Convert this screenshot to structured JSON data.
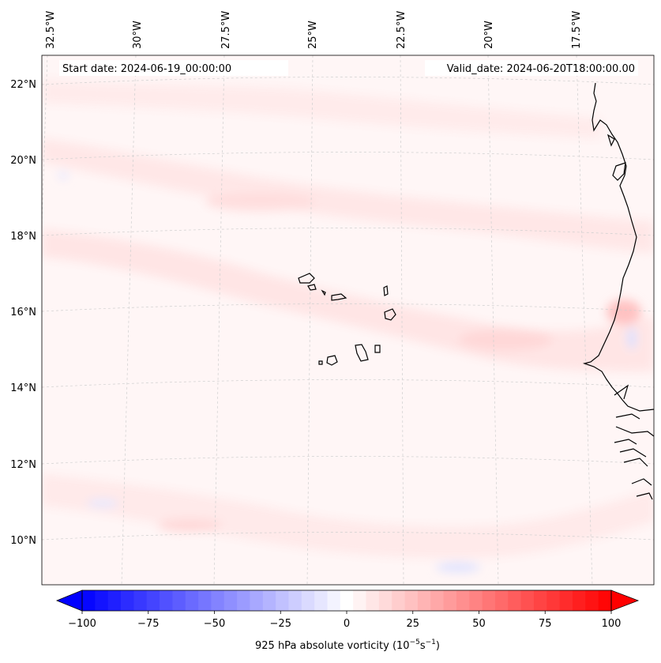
{
  "map": {
    "start_date_label": "Start date: 2024-06-19_00:00:00",
    "valid_date_label": "Valid_date: 2024-06-20T18:00:00.00",
    "lon_labels": [
      "32.5°W",
      "30°W",
      "27.5°W",
      "25°W",
      "22.5°W",
      "20°W",
      "17.5°W"
    ],
    "lat_labels": [
      "22°N",
      "20°N",
      "18°N",
      "16°N",
      "14°N",
      "12°N",
      "10°N"
    ]
  },
  "colorbar": {
    "title": "925 hPa absolute vorticity (10",
    "title_exp1": "−5",
    "title_mid": "s",
    "title_exp2": "−1",
    "title_close": ")",
    "tick_labels": [
      "−100",
      "−75",
      "−50",
      "−25",
      "0",
      "25",
      "50",
      "75",
      "100"
    ],
    "min": -100,
    "max": 100,
    "levels": 41,
    "neg_color": "#0000ff",
    "pos_color": "#ff0000"
  }
}
